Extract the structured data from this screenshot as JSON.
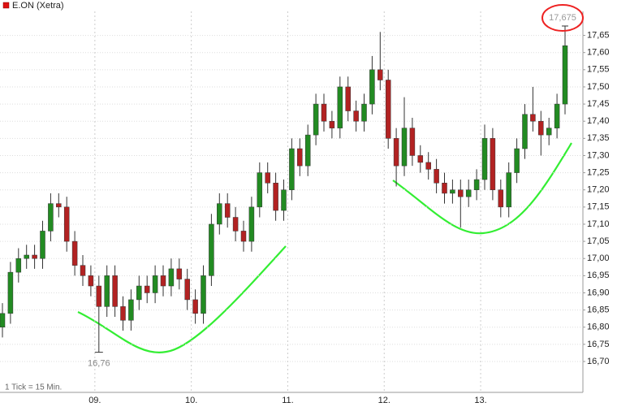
{
  "chart_data": {
    "type": "candlestick",
    "title": "E.ON (Xetra)",
    "note": "1 Tick = 15 Min.",
    "categories": [
      null,
      null,
      null,
      null,
      null,
      null,
      null,
      null,
      null,
      null,
      null,
      null,
      "09.",
      null,
      null,
      null,
      null,
      null,
      null,
      null,
      null,
      null,
      null,
      null,
      "10.",
      null,
      null,
      null,
      null,
      null,
      null,
      null,
      null,
      null,
      null,
      null,
      "11.",
      null,
      null,
      null,
      null,
      null,
      null,
      null,
      null,
      null,
      null,
      null,
      "12.",
      null,
      null,
      null,
      null,
      null,
      null,
      null,
      null,
      null,
      null,
      null,
      "13.",
      null,
      null,
      null,
      null,
      null,
      null,
      null,
      null,
      null,
      null
    ],
    "open": [
      16.8,
      16.84,
      16.96,
      17.0,
      17.01,
      17.0,
      17.08,
      17.16,
      17.15,
      17.05,
      16.98,
      16.95,
      16.92,
      16.86,
      16.95,
      16.86,
      16.82,
      16.88,
      16.92,
      16.9,
      16.95,
      16.92,
      16.97,
      16.94,
      16.88,
      16.84,
      16.95,
      17.1,
      17.16,
      17.12,
      17.08,
      17.05,
      17.15,
      17.25,
      17.22,
      17.14,
      17.2,
      17.32,
      17.27,
      17.36,
      17.45,
      17.4,
      17.38,
      17.5,
      17.43,
      17.4,
      17.45,
      17.55,
      17.52,
      17.35,
      17.27,
      17.38,
      17.3,
      17.28,
      17.26,
      17.22,
      17.19,
      17.2,
      17.18,
      17.2,
      17.23,
      17.35,
      17.2,
      17.15,
      17.25,
      17.32,
      17.42,
      17.4,
      17.36,
      17.38,
      17.45
    ],
    "high": [
      16.87,
      16.99,
      17.03,
      17.04,
      17.04,
      17.11,
      17.19,
      17.19,
      17.18,
      17.08,
      17.01,
      16.98,
      16.95,
      16.98,
      16.98,
      16.89,
      16.91,
      16.95,
      16.95,
      16.98,
      16.98,
      17.0,
      17.0,
      16.97,
      16.91,
      16.98,
      17.13,
      17.19,
      17.19,
      17.15,
      17.11,
      17.18,
      17.28,
      17.28,
      17.25,
      17.23,
      17.35,
      17.35,
      17.39,
      17.48,
      17.48,
      17.43,
      17.53,
      17.53,
      17.46,
      17.48,
      17.59,
      17.66,
      17.55,
      17.38,
      17.47,
      17.41,
      17.33,
      17.31,
      17.29,
      17.25,
      17.23,
      17.23,
      17.23,
      17.26,
      17.39,
      17.38,
      17.23,
      17.28,
      17.35,
      17.45,
      17.5,
      17.43,
      17.41,
      17.48,
      17.675
    ],
    "low": [
      16.77,
      16.81,
      16.93,
      16.97,
      16.97,
      16.97,
      17.05,
      17.12,
      17.02,
      16.95,
      16.92,
      16.89,
      16.76,
      16.83,
      16.83,
      16.79,
      16.79,
      16.85,
      16.87,
      16.87,
      16.89,
      16.89,
      16.91,
      16.85,
      16.81,
      16.81,
      16.92,
      17.07,
      17.09,
      17.05,
      17.02,
      17.02,
      17.12,
      17.19,
      17.11,
      17.11,
      17.17,
      17.24,
      17.24,
      17.33,
      17.37,
      17.35,
      17.35,
      17.4,
      17.37,
      17.37,
      17.42,
      17.49,
      17.32,
      17.21,
      17.24,
      17.27,
      17.25,
      17.23,
      17.19,
      17.16,
      17.16,
      17.09,
      17.15,
      17.17,
      17.2,
      17.17,
      17.12,
      17.12,
      17.22,
      17.29,
      17.37,
      17.3,
      17.33,
      17.35,
      17.42
    ],
    "close": [
      16.84,
      16.96,
      17.0,
      17.01,
      17.0,
      17.08,
      17.16,
      17.15,
      17.05,
      16.98,
      16.95,
      16.92,
      16.86,
      16.95,
      16.86,
      16.82,
      16.88,
      16.92,
      16.9,
      16.95,
      16.92,
      16.97,
      16.94,
      16.88,
      16.84,
      16.95,
      17.1,
      17.16,
      17.12,
      17.08,
      17.05,
      17.15,
      17.25,
      17.22,
      17.14,
      17.2,
      17.32,
      17.27,
      17.36,
      17.45,
      17.4,
      17.38,
      17.5,
      17.43,
      17.4,
      17.45,
      17.55,
      17.52,
      17.35,
      17.27,
      17.38,
      17.3,
      17.28,
      17.26,
      17.22,
      17.19,
      17.2,
      17.18,
      17.2,
      17.23,
      17.35,
      17.2,
      17.15,
      17.25,
      17.32,
      17.42,
      17.4,
      17.36,
      17.38,
      17.45,
      17.62
    ],
    "up_color": "#228b22",
    "down_color": "#b22222",
    "ylim": [
      16.61,
      17.72
    ],
    "yticks": [
      {
        "value": 16.7,
        "label": "16,70"
      },
      {
        "value": 16.75,
        "label": "16,75"
      },
      {
        "value": 16.8,
        "label": "16,80"
      },
      {
        "value": 16.85,
        "label": "16,85"
      },
      {
        "value": 16.9,
        "label": "16,90"
      },
      {
        "value": 16.95,
        "label": "16,95"
      },
      {
        "value": 17.0,
        "label": "17,00"
      },
      {
        "value": 17.05,
        "label": "17,05"
      },
      {
        "value": 17.1,
        "label": "17,10"
      },
      {
        "value": 17.15,
        "label": "17,15"
      },
      {
        "value": 17.2,
        "label": "17,20"
      },
      {
        "value": 17.25,
        "label": "17,25"
      },
      {
        "value": 17.3,
        "label": "17,30"
      },
      {
        "value": 17.35,
        "label": "17,35"
      },
      {
        "value": 17.4,
        "label": "17,40"
      },
      {
        "value": 17.45,
        "label": "17,45"
      },
      {
        "value": 17.5,
        "label": "17,50"
      },
      {
        "value": 17.55,
        "label": "17,55"
      },
      {
        "value": 17.6,
        "label": "17,60"
      },
      {
        "value": 17.65,
        "label": "17,65"
      }
    ],
    "grid": true,
    "annotations": [
      {
        "label": "16,76",
        "value": 16.76,
        "index": 12,
        "position": "below"
      },
      {
        "label": "17,675",
        "value": 17.675,
        "index": 70,
        "position": "above"
      }
    ]
  }
}
